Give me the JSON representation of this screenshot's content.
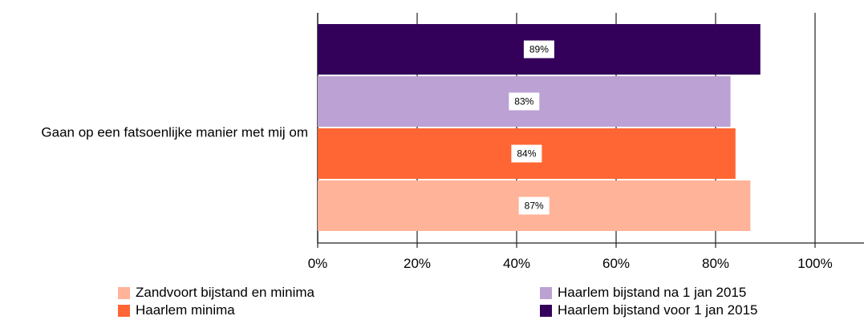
{
  "chart_data": {
    "type": "bar",
    "orientation": "horizontal",
    "categories": [
      "Gaan op een fatsoenlijke manier met mij om"
    ],
    "series": [
      {
        "name": "Haarlem bijstand voor 1 jan 2015",
        "values": [
          89
        ],
        "color": "#33005a",
        "label": "89%"
      },
      {
        "name": "Haarlem bijstand na 1 jan 2015",
        "values": [
          83
        ],
        "color": "#bca1d4",
        "label": "83%"
      },
      {
        "name": "Haarlem minima",
        "values": [
          84
        ],
        "color": "#ff6633",
        "label": "84%"
      },
      {
        "name": "Zandvoort bijstand en minima",
        "values": [
          87
        ],
        "color": "#ffb399",
        "label": "87%"
      }
    ],
    "xlim": [
      0,
      100
    ],
    "x_ticks": [
      "0%",
      "20%",
      "40%",
      "60%",
      "80%",
      "100%"
    ],
    "x_tick_values": [
      0,
      20,
      40,
      60,
      80,
      100
    ],
    "legend_position": "bottom",
    "grid": true
  },
  "legend": [
    {
      "label": "Zandvoort bijstand en minima",
      "color": "#ffb399"
    },
    {
      "label": "Haarlem bijstand na 1 jan 2015",
      "color": "#bca1d4"
    },
    {
      "label": "Haarlem minima",
      "color": "#ff6633"
    },
    {
      "label": "Haarlem bijstand voor 1 jan 2015",
      "color": "#33005a"
    }
  ]
}
